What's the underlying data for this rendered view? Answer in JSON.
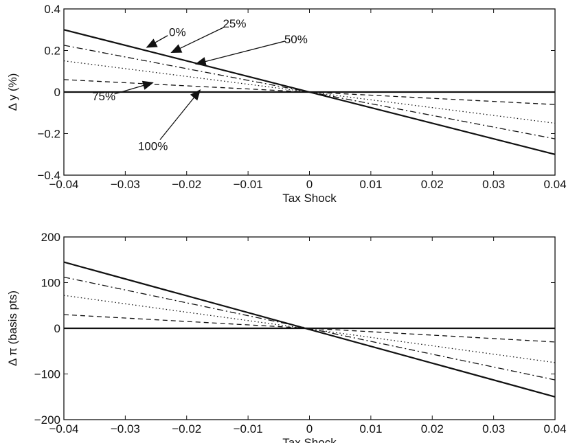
{
  "chart_data": [
    {
      "type": "line",
      "xlabel": "Tax Shock",
      "ylabel": "Δ y (%)",
      "xlim": [
        -0.04,
        0.04
      ],
      "ylim": [
        -0.4,
        0.4
      ],
      "xticks": [
        "−0.04",
        "−0.03",
        "−0.02",
        "−0.01",
        "0",
        "0.01",
        "0.02",
        "0.03",
        "0.04"
      ],
      "yticks": [
        "−0.4",
        "−0.2",
        "0",
        "0.2",
        "0.4"
      ],
      "grid": false,
      "series": [
        {
          "name": "0%",
          "style": "solid",
          "x": [
            -0.04,
            0.04
          ],
          "y": [
            0.3,
            -0.3
          ]
        },
        {
          "name": "25%",
          "style": "dashdot",
          "x": [
            -0.04,
            0.04
          ],
          "y": [
            0.225,
            -0.225
          ]
        },
        {
          "name": "50%",
          "style": "dotted",
          "x": [
            -0.04,
            0.04
          ],
          "y": [
            0.15,
            -0.15
          ]
        },
        {
          "name": "75%",
          "style": "dashed",
          "x": [
            -0.04,
            0.04
          ],
          "y": [
            0.06,
            -0.06
          ]
        },
        {
          "name": "100%",
          "style": "solid",
          "x": [
            -0.04,
            0.04
          ],
          "y": [
            0.0,
            0.0
          ]
        }
      ],
      "annotations": [
        {
          "text": "0%",
          "text_x": -0.0215,
          "text_y": 0.27,
          "point_x": -0.0265,
          "point_y": 0.215
        },
        {
          "text": "25%",
          "text_x": -0.0122,
          "text_y": 0.31,
          "point_x": -0.0225,
          "point_y": 0.19
        },
        {
          "text": "50%",
          "text_x": -0.0022,
          "text_y": 0.235,
          "point_x": -0.0185,
          "point_y": 0.135
        },
        {
          "text": "75%",
          "text_x": -0.0335,
          "text_y": -0.04,
          "point_x": -0.0255,
          "point_y": 0.045
        },
        {
          "text": "100%",
          "text_x": -0.0255,
          "text_y": -0.28,
          "point_x": -0.0178,
          "point_y": 0.01
        }
      ]
    },
    {
      "type": "line",
      "xlabel": "Tax Shock",
      "ylabel": "Δ π (basis pts)",
      "xlim": [
        -0.04,
        0.04
      ],
      "ylim": [
        -200,
        200
      ],
      "xticks": [
        "−0.04",
        "−0.03",
        "−0.02",
        "−0.01",
        "0",
        "0.01",
        "0.02",
        "0.03",
        "0.04"
      ],
      "yticks": [
        "−200",
        "−100",
        "0",
        "100",
        "200"
      ],
      "grid": false,
      "series": [
        {
          "name": "0%",
          "style": "solid",
          "x": [
            -0.04,
            0.04
          ],
          "y": [
            145,
            -150
          ]
        },
        {
          "name": "25%",
          "style": "dashdot",
          "x": [
            -0.04,
            0.04
          ],
          "y": [
            112,
            -113
          ]
        },
        {
          "name": "50%",
          "style": "dotted",
          "x": [
            -0.04,
            0.04
          ],
          "y": [
            72,
            -75
          ]
        },
        {
          "name": "75%",
          "style": "dashed",
          "x": [
            -0.04,
            0.04
          ],
          "y": [
            30,
            -30
          ]
        },
        {
          "name": "100%",
          "style": "solid",
          "x": [
            -0.04,
            0.04
          ],
          "y": [
            0,
            0
          ]
        }
      ]
    }
  ]
}
